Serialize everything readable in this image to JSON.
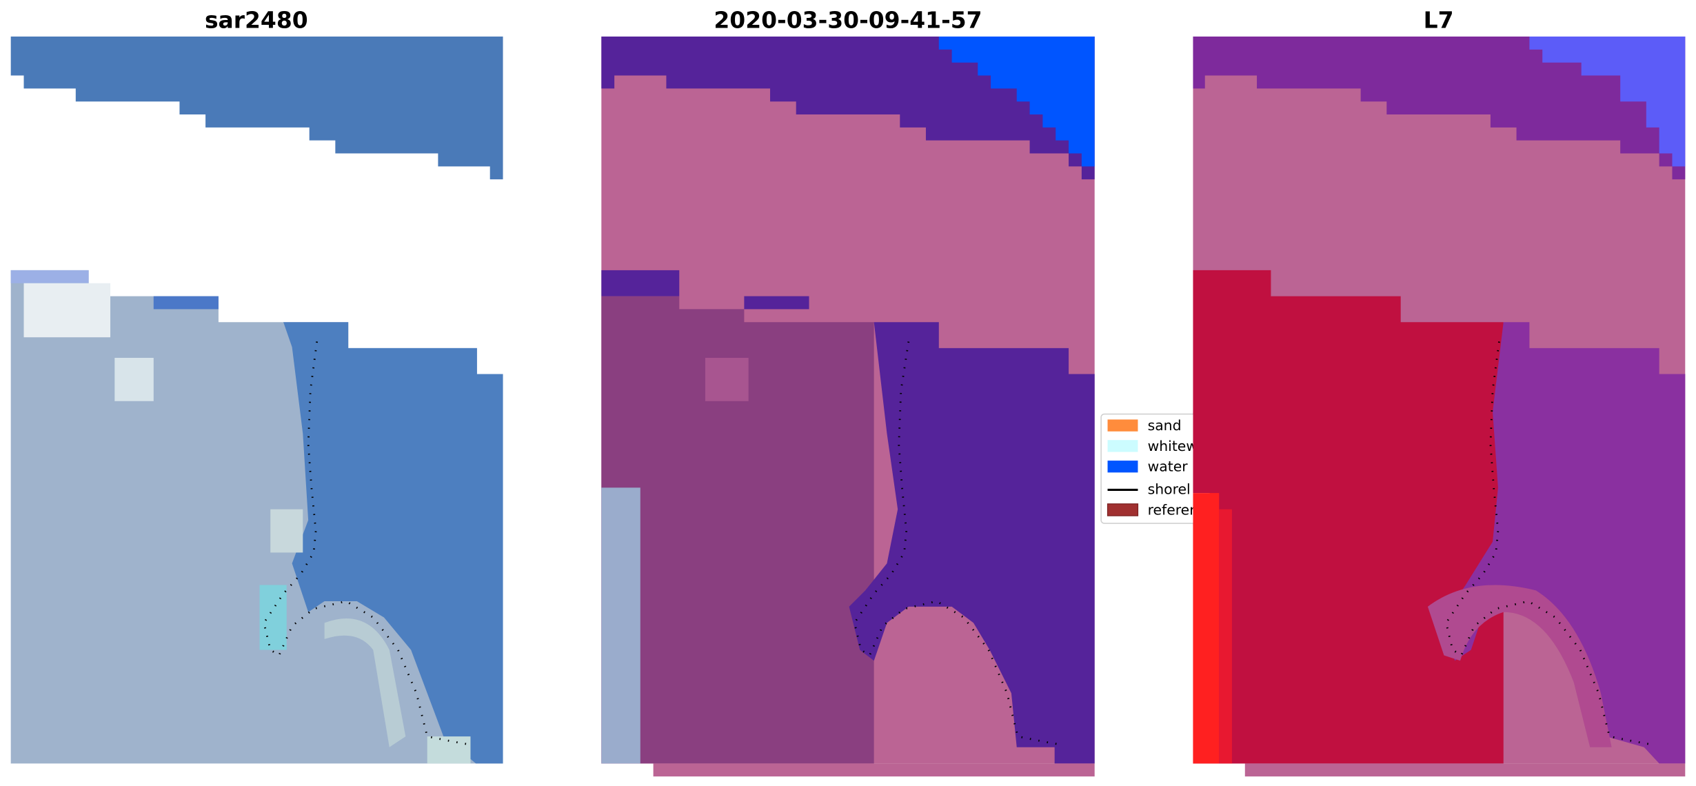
{
  "panels": [
    {
      "title": "sar2480"
    },
    {
      "title": "2020-03-30-09-41-57"
    },
    {
      "title": "L7"
    }
  ],
  "legend": {
    "items": [
      {
        "label": "sand",
        "color": "#ff8c3c",
        "kind": "patch"
      },
      {
        "label": "whitew",
        "color": "#ccfcff",
        "kind": "patch"
      },
      {
        "label": "water",
        "color": "#0055ff",
        "kind": "patch"
      },
      {
        "label": "shorel",
        "color": "#000000",
        "kind": "line"
      },
      {
        "label": "referer",
        "color": "#a03030",
        "kind": "patch"
      }
    ]
  },
  "colors": {
    "sar_water": "#4a7ab8",
    "sar_land": "#9fb3cc",
    "class_dark_purple": "#55239a",
    "class_pink": "#bb6494",
    "class_blue": "#0055ff",
    "l7_red": "#c01040",
    "l7_purple": "#8a30a0"
  }
}
